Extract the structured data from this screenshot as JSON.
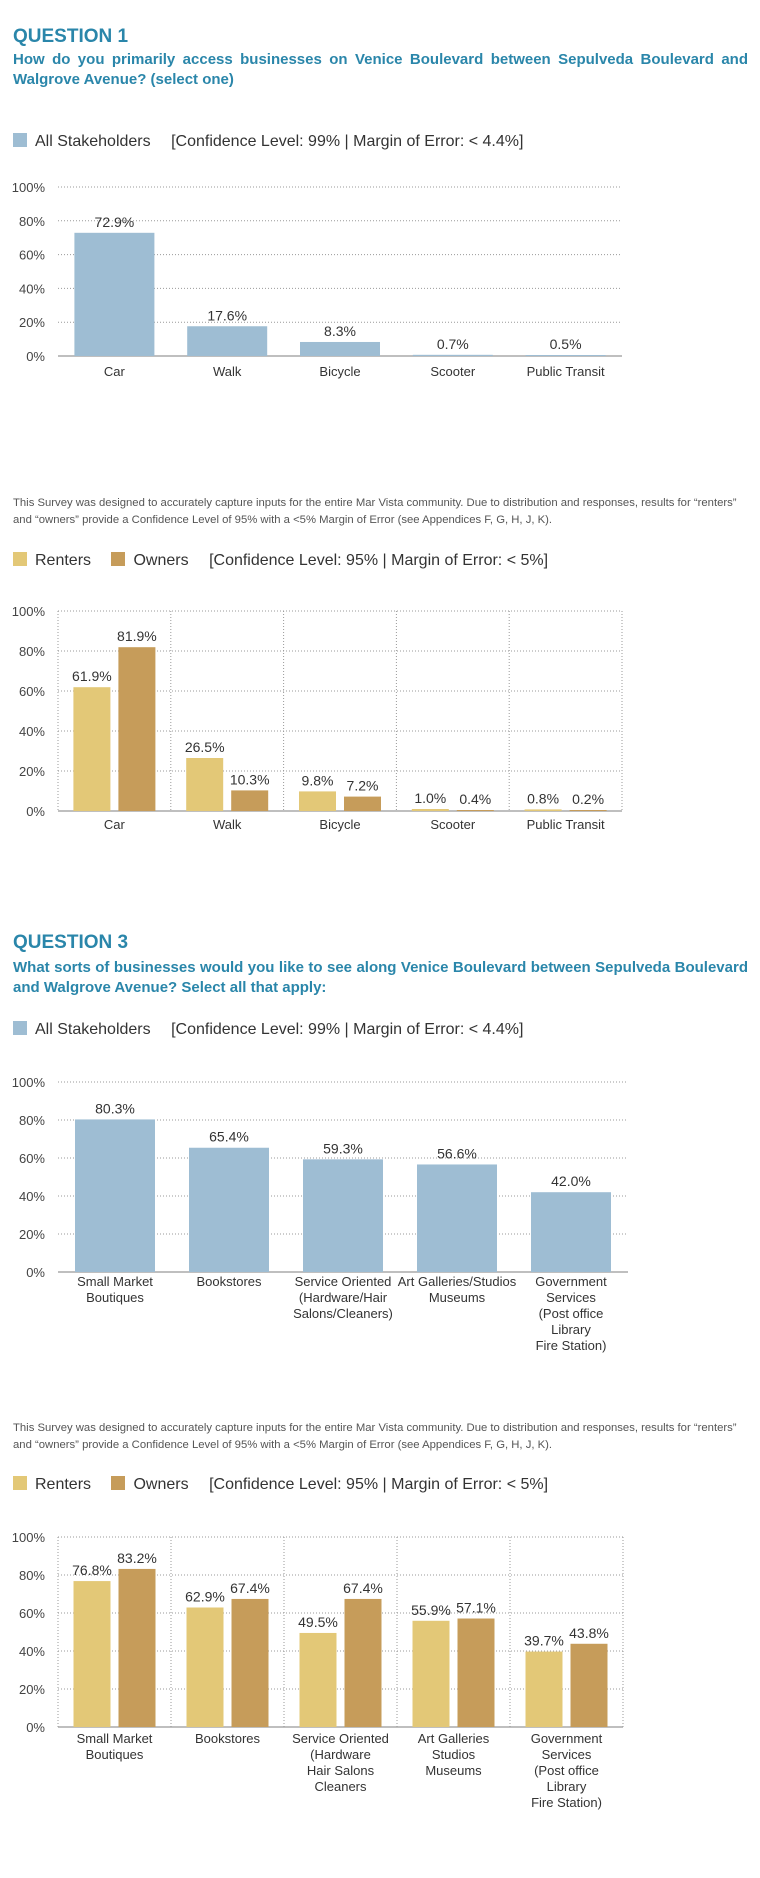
{
  "colors": {
    "all": "#9ebdd3",
    "renters": "#e3c877",
    "owners": "#c69c5a",
    "title": "#2a86aa"
  },
  "q1": {
    "label": "QUESTION 1",
    "question": "How do you primarily access businesses on Venice Boulevard between Sepulveda Boulevard and Walgrove Avenue? (select one)",
    "legend_all": "All Stakeholders",
    "legend_all_conf": "[Confidence Level: 99%  |  Margin of Error: < 4.4%]",
    "note": "This Survey was designed to accurately capture inputs for the entire Mar Vista community. Due to distribution and responses, results for “renters” and “owners” provide a Confidence Level of 95% with a <5% Margin of Error (see Appendices F, G, H, J, K).",
    "legend_renters": "Renters",
    "legend_owners": "Owners",
    "legend_ro_conf": "[Confidence Level: 95%  |  Margin of Error: < 5%]"
  },
  "q3": {
    "label": "QUESTION 3",
    "question": "What sorts of businesses would you like to see along Venice Boulevard between Sepulveda Boulevard and Walgrove Avenue? Select all that apply:",
    "legend_all": "All Stakeholders",
    "legend_all_conf": "[Confidence Level: 99%  |  Margin of Error: < 4.4%]",
    "note": "This Survey was designed to accurately capture inputs for the entire Mar Vista community. Due to distribution and responses, results for “renters” and “owners” provide a Confidence Level of 95% with a <5% Margin of Error (see Appendices F, G, H, J, K).",
    "legend_renters": "Renters",
    "legend_owners": "Owners",
    "legend_ro_conf": "[Confidence Level: 95%  |  Margin of Error: < 5%]"
  },
  "chart_data": [
    {
      "type": "bar",
      "categories": [
        "Car",
        "Walk",
        "Bicycle",
        "Scooter",
        "Public Transit"
      ],
      "series": [
        {
          "name": "All Stakeholders",
          "values": [
            72.9,
            17.6,
            8.3,
            0.7,
            0.5
          ]
        }
      ],
      "value_labels": [
        "72.9%",
        "17.6%",
        "8.3%",
        "0.7%",
        "0.5%"
      ],
      "yticks": [
        "100%",
        "80%",
        "60%",
        "40%",
        "20%",
        "0%"
      ],
      "ylim": [
        0,
        100
      ],
      "grid": true
    },
    {
      "type": "bar",
      "categories": [
        "Car",
        "Walk",
        "Bicycle",
        "Scooter",
        "Public Transit"
      ],
      "series": [
        {
          "name": "Renters",
          "values": [
            61.9,
            26.5,
            9.8,
            1.0,
            0.8
          ]
        },
        {
          "name": "Owners",
          "values": [
            81.9,
            10.3,
            7.2,
            0.4,
            0.2
          ]
        }
      ],
      "value_labels": [
        [
          "61.9%",
          "26.5%",
          "9.8%",
          "1.0%",
          "0.8%"
        ],
        [
          "81.9%",
          "10.3%",
          "7.2%",
          "0.4%",
          "0.2%"
        ]
      ],
      "yticks": [
        "100%",
        "80%",
        "60%",
        "40%",
        "20%",
        "0%"
      ],
      "ylim": [
        0,
        100
      ],
      "grid": true
    },
    {
      "type": "bar",
      "categories": [
        [
          "Small Market",
          "Boutiques"
        ],
        [
          "Bookstores"
        ],
        [
          "Service Oriented",
          "(Hardware/Hair",
          "Salons/Cleaners)"
        ],
        [
          "Art Galleries/Studios",
          "Museums"
        ],
        [
          "Government",
          "Services",
          "(Post office",
          "Library",
          "Fire Station)"
        ]
      ],
      "series": [
        {
          "name": "All Stakeholders",
          "values": [
            80.3,
            65.4,
            59.3,
            56.6,
            42.0
          ]
        }
      ],
      "value_labels": [
        "80.3%",
        "65.4%",
        "59.3%",
        "56.6%",
        "42.0%"
      ],
      "yticks": [
        "100%",
        "80%",
        "60%",
        "40%",
        "20%",
        "0%"
      ],
      "ylim": [
        0,
        100
      ],
      "grid": true
    },
    {
      "type": "bar",
      "categories": [
        [
          "Small Market",
          "Boutiques"
        ],
        [
          "Bookstores"
        ],
        [
          "Service Oriented",
          "(Hardware",
          "Hair Salons",
          "Cleaners"
        ],
        [
          "Art Galleries",
          "Studios",
          "Museums"
        ],
        [
          "Government",
          "Services",
          "(Post office",
          "Library",
          "Fire Station)"
        ]
      ],
      "series": [
        {
          "name": "Renters",
          "values": [
            76.8,
            62.9,
            49.5,
            55.9,
            39.7
          ]
        },
        {
          "name": "Owners",
          "values": [
            83.2,
            67.4,
            67.4,
            57.1,
            43.8
          ]
        }
      ],
      "value_labels": [
        [
          "76.8%",
          "62.9%",
          "49.5%",
          "55.9%",
          "39.7%"
        ],
        [
          "83.2%",
          "67.4%",
          "67.4%",
          "57.1%",
          "43.8%"
        ]
      ],
      "yticks": [
        "100%",
        "80%",
        "60%",
        "40%",
        "20%",
        "0%"
      ],
      "ylim": [
        0,
        100
      ],
      "grid": true
    }
  ]
}
